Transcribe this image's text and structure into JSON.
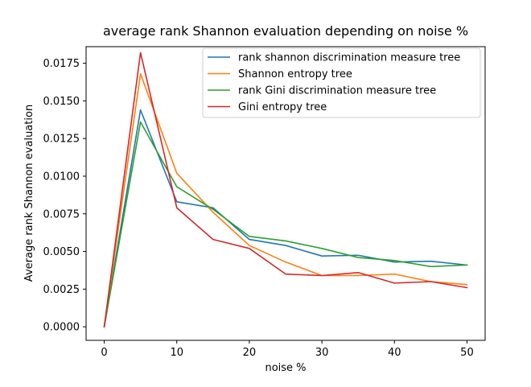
{
  "chart_data": {
    "type": "line",
    "title": "average rank Shannon evaluation depending on noise %",
    "xlabel": "noise %",
    "ylabel": "Average rank Shannon evaluation",
    "xlim": [
      -2.5,
      52.5
    ],
    "ylim": [
      -0.0009,
      0.0186
    ],
    "xticks": [
      0,
      10,
      20,
      30,
      40,
      50
    ],
    "xtick_labels": [
      "0",
      "10",
      "20",
      "30",
      "40",
      "50"
    ],
    "yticks": [
      0.0,
      0.0025,
      0.005,
      0.0075,
      0.01,
      0.0125,
      0.015,
      0.0175
    ],
    "ytick_labels": [
      "0.0000",
      "0.0025",
      "0.0050",
      "0.0075",
      "0.0100",
      "0.0125",
      "0.0150",
      "0.0175"
    ],
    "grid": false,
    "legend_position": "top-right",
    "x": [
      0,
      5,
      10,
      15,
      20,
      25,
      30,
      35,
      40,
      45,
      50
    ],
    "series": [
      {
        "name": "rank shannon discrimination measure tree",
        "color": "#1f77b4",
        "values": [
          0.0,
          0.0144,
          0.0083,
          0.0079,
          0.0058,
          0.0054,
          0.0047,
          0.00475,
          0.0043,
          0.00435,
          0.0041
        ]
      },
      {
        "name": "Shannon entropy tree",
        "color": "#ff7f0e",
        "values": [
          0.0,
          0.0168,
          0.0102,
          0.0076,
          0.0054,
          0.0043,
          0.0034,
          0.0034,
          0.0035,
          0.003,
          0.0028
        ]
      },
      {
        "name": "rank Gini discrimination measure tree",
        "color": "#2ca02c",
        "values": [
          0.0,
          0.0136,
          0.0093,
          0.0078,
          0.006,
          0.0057,
          0.0052,
          0.0046,
          0.0044,
          0.004,
          0.0041
        ]
      },
      {
        "name": "Gini entropy tree",
        "color": "#d62728",
        "values": [
          0.0,
          0.0182,
          0.0079,
          0.0058,
          0.0052,
          0.0035,
          0.0034,
          0.0036,
          0.0029,
          0.003,
          0.0026
        ]
      }
    ]
  }
}
